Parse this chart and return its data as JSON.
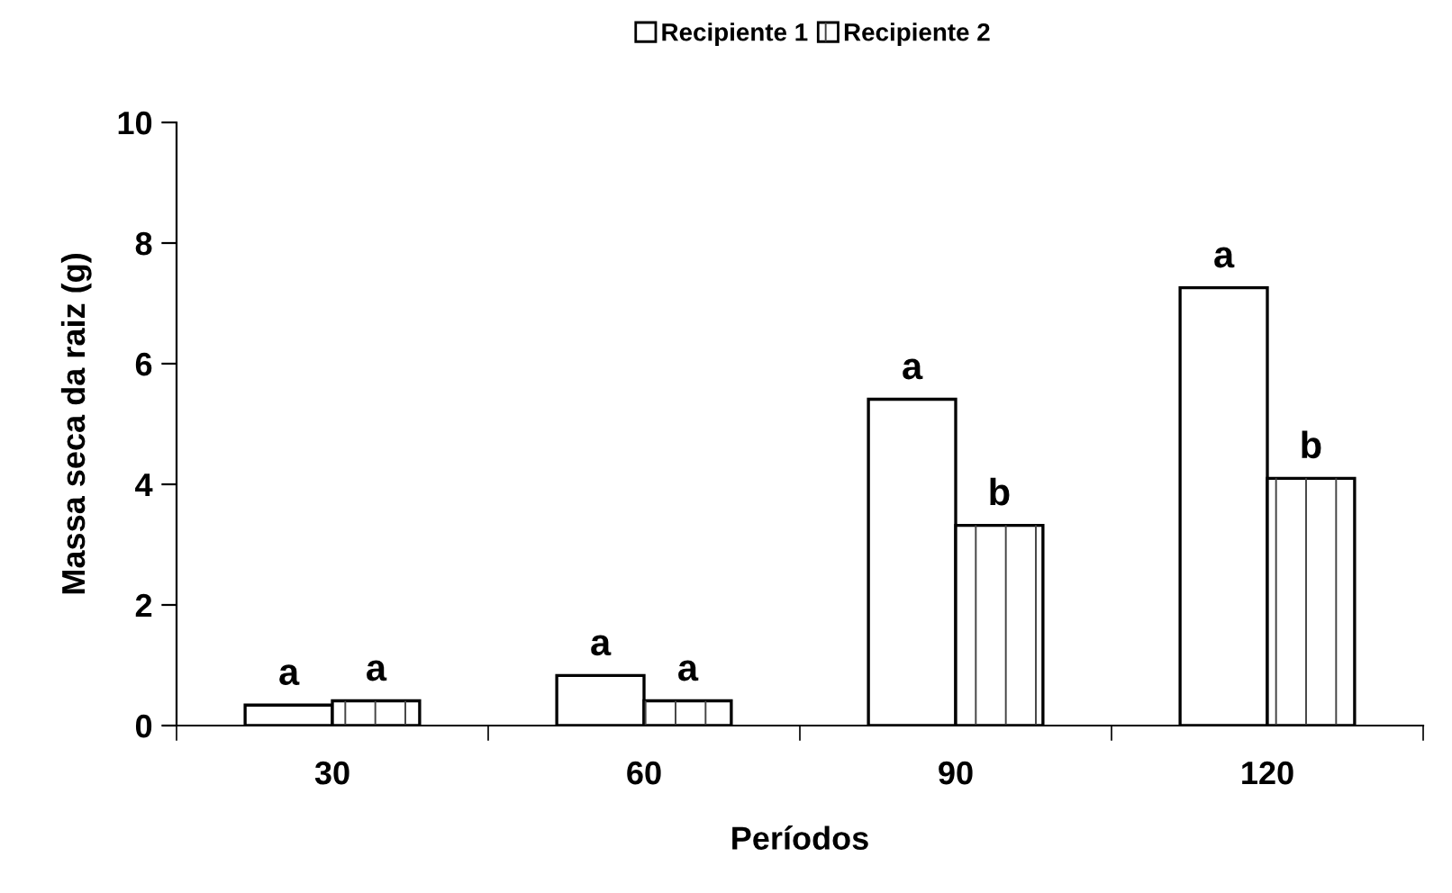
{
  "chart_data": {
    "type": "bar",
    "xlabel": "Períodos",
    "ylabel": "Massa seca da raiz (g)",
    "categories": [
      "30",
      "60",
      "90",
      "120"
    ],
    "series": [
      {
        "name": "Recipiente 1",
        "color": "#ffffff",
        "values": [
          0.34,
          0.83,
          5.41,
          7.26
        ],
        "value_labels": [
          "a",
          "a",
          "a",
          "a"
        ]
      },
      {
        "name": "Recipiente 2",
        "color": "#ffffff",
        "values": [
          0.41,
          0.41,
          3.32,
          4.1
        ],
        "value_labels": [
          "a",
          "a",
          "b",
          "b"
        ]
      }
    ],
    "ylim": [
      0,
      10
    ],
    "yticks": [
      0,
      2,
      4,
      6,
      8,
      10
    ],
    "grid": false,
    "legend": "top"
  }
}
